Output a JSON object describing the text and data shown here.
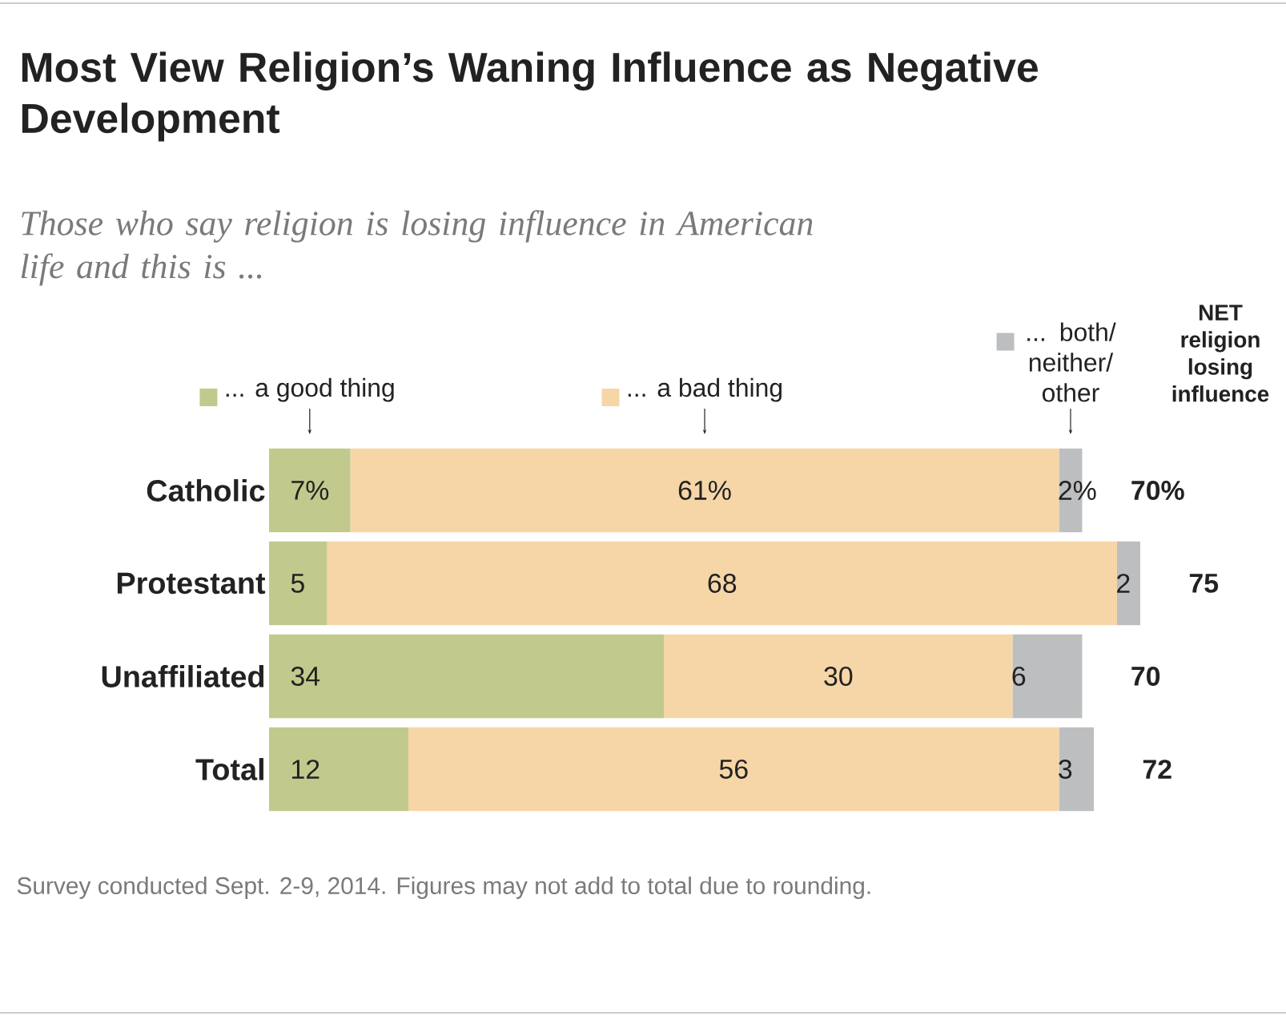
{
  "chart_data": {
    "type": "bar",
    "orientation": "horizontal",
    "stacked": true,
    "title": "Most View Religion’s Waning Influence as Negative Development",
    "subtitle": "Those who say religion is losing influence in American life and this is ...",
    "categories": [
      "Catholic",
      "Protestant",
      "Unaffiliated",
      "Total"
    ],
    "series": [
      {
        "name": "... a good thing",
        "color": "#c2c98c",
        "values": [
          7,
          5,
          34,
          12
        ],
        "value_labels": [
          "7%",
          "5",
          "34",
          "12"
        ]
      },
      {
        "name": "... a bad thing",
        "color": "#f6d6a7",
        "values": [
          61,
          68,
          30,
          56
        ],
        "value_labels": [
          "61%",
          "68",
          "30",
          "56"
        ]
      },
      {
        "name": "... both/ neither/ other",
        "color": "#bdbec0",
        "values": [
          2,
          2,
          6,
          3
        ],
        "value_labels": [
          "2%",
          "2",
          "6",
          "3"
        ]
      }
    ],
    "totals": [
      "70%",
      "75",
      "70",
      "72"
    ],
    "legend": "top",
    "annotations": [
      "NET religion losing influence",
      "Survey conducted Sept. 2-9, 2014. Figures may not add to total due to rounding."
    ]
  }
}
